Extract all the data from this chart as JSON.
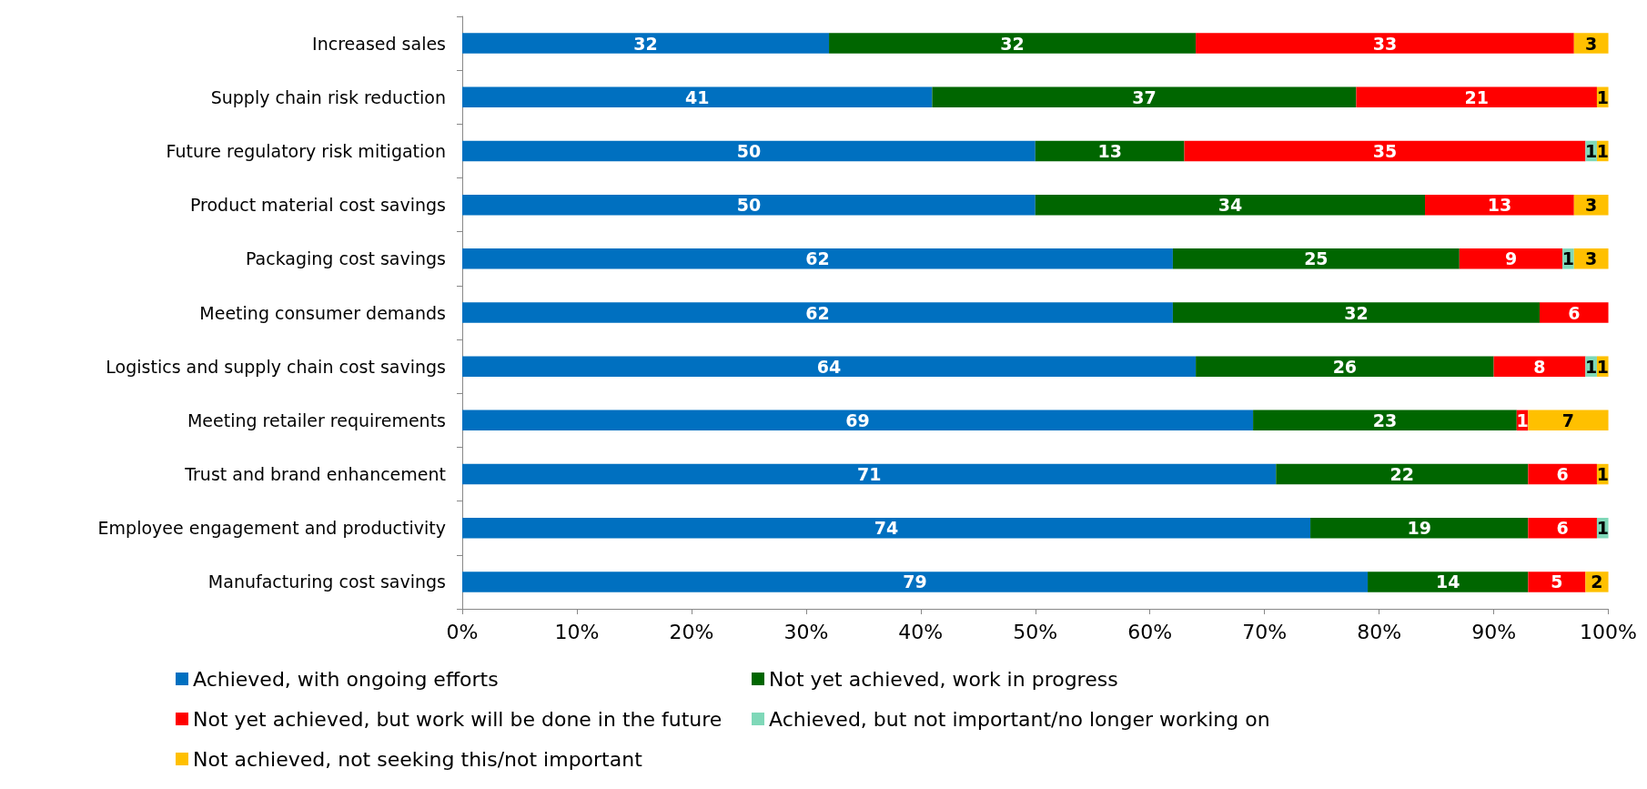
{
  "chart_data": {
    "type": "bar",
    "orientation": "horizontal",
    "stacked": true,
    "data_labels": true,
    "legend": "bottom",
    "grid": false,
    "categories": [
      "Increased sales",
      "Supply chain risk reduction",
      "Future regulatory risk mitigation",
      "Product material cost savings",
      "Packaging cost savings",
      "Meeting consumer demands",
      "Logistics and supply chain cost savings",
      "Meeting retailer requirements",
      "Trust and brand enhancement",
      "Employee engagement and productivity",
      "Manufacturing cost savings"
    ],
    "xlim": [
      0,
      100
    ],
    "xticks": [
      {
        "value": 0,
        "label": "0%"
      },
      {
        "value": 10,
        "label": "10%"
      },
      {
        "value": 20,
        "label": "20%"
      },
      {
        "value": 30,
        "label": "30%"
      },
      {
        "value": 40,
        "label": "40%"
      },
      {
        "value": 50,
        "label": "50%"
      },
      {
        "value": 60,
        "label": "60%"
      },
      {
        "value": 70,
        "label": "70%"
      },
      {
        "value": 80,
        "label": "80%"
      },
      {
        "value": 90,
        "label": "90%"
      },
      {
        "value": 100,
        "label": "100%"
      }
    ],
    "series": [
      {
        "name": "Achieved, with ongoing efforts",
        "color": "#0070c0",
        "values": [
          32,
          41,
          50,
          50,
          62,
          62,
          64,
          69,
          71,
          74,
          79
        ]
      },
      {
        "name": "Not yet achieved, work in progress",
        "color": "#006600",
        "values": [
          32,
          37,
          13,
          34,
          25,
          32,
          26,
          23,
          22,
          19,
          14
        ]
      },
      {
        "name": "Not yet achieved, but work will be done in the future",
        "color": "#ff0000",
        "values": [
          33,
          21,
          35,
          13,
          9,
          6,
          8,
          1,
          6,
          6,
          5
        ]
      },
      {
        "name": "Achieved, but not important/no longer working on",
        "color": "#7fd8b8",
        "values": [
          null,
          null,
          1,
          null,
          1,
          null,
          1,
          null,
          null,
          1,
          null
        ]
      },
      {
        "name": "Not achieved, not seeking this/not important",
        "color": "#ffc000",
        "values": [
          3,
          1,
          1,
          3,
          3,
          null,
          1,
          7,
          1,
          null,
          2
        ]
      }
    ]
  }
}
